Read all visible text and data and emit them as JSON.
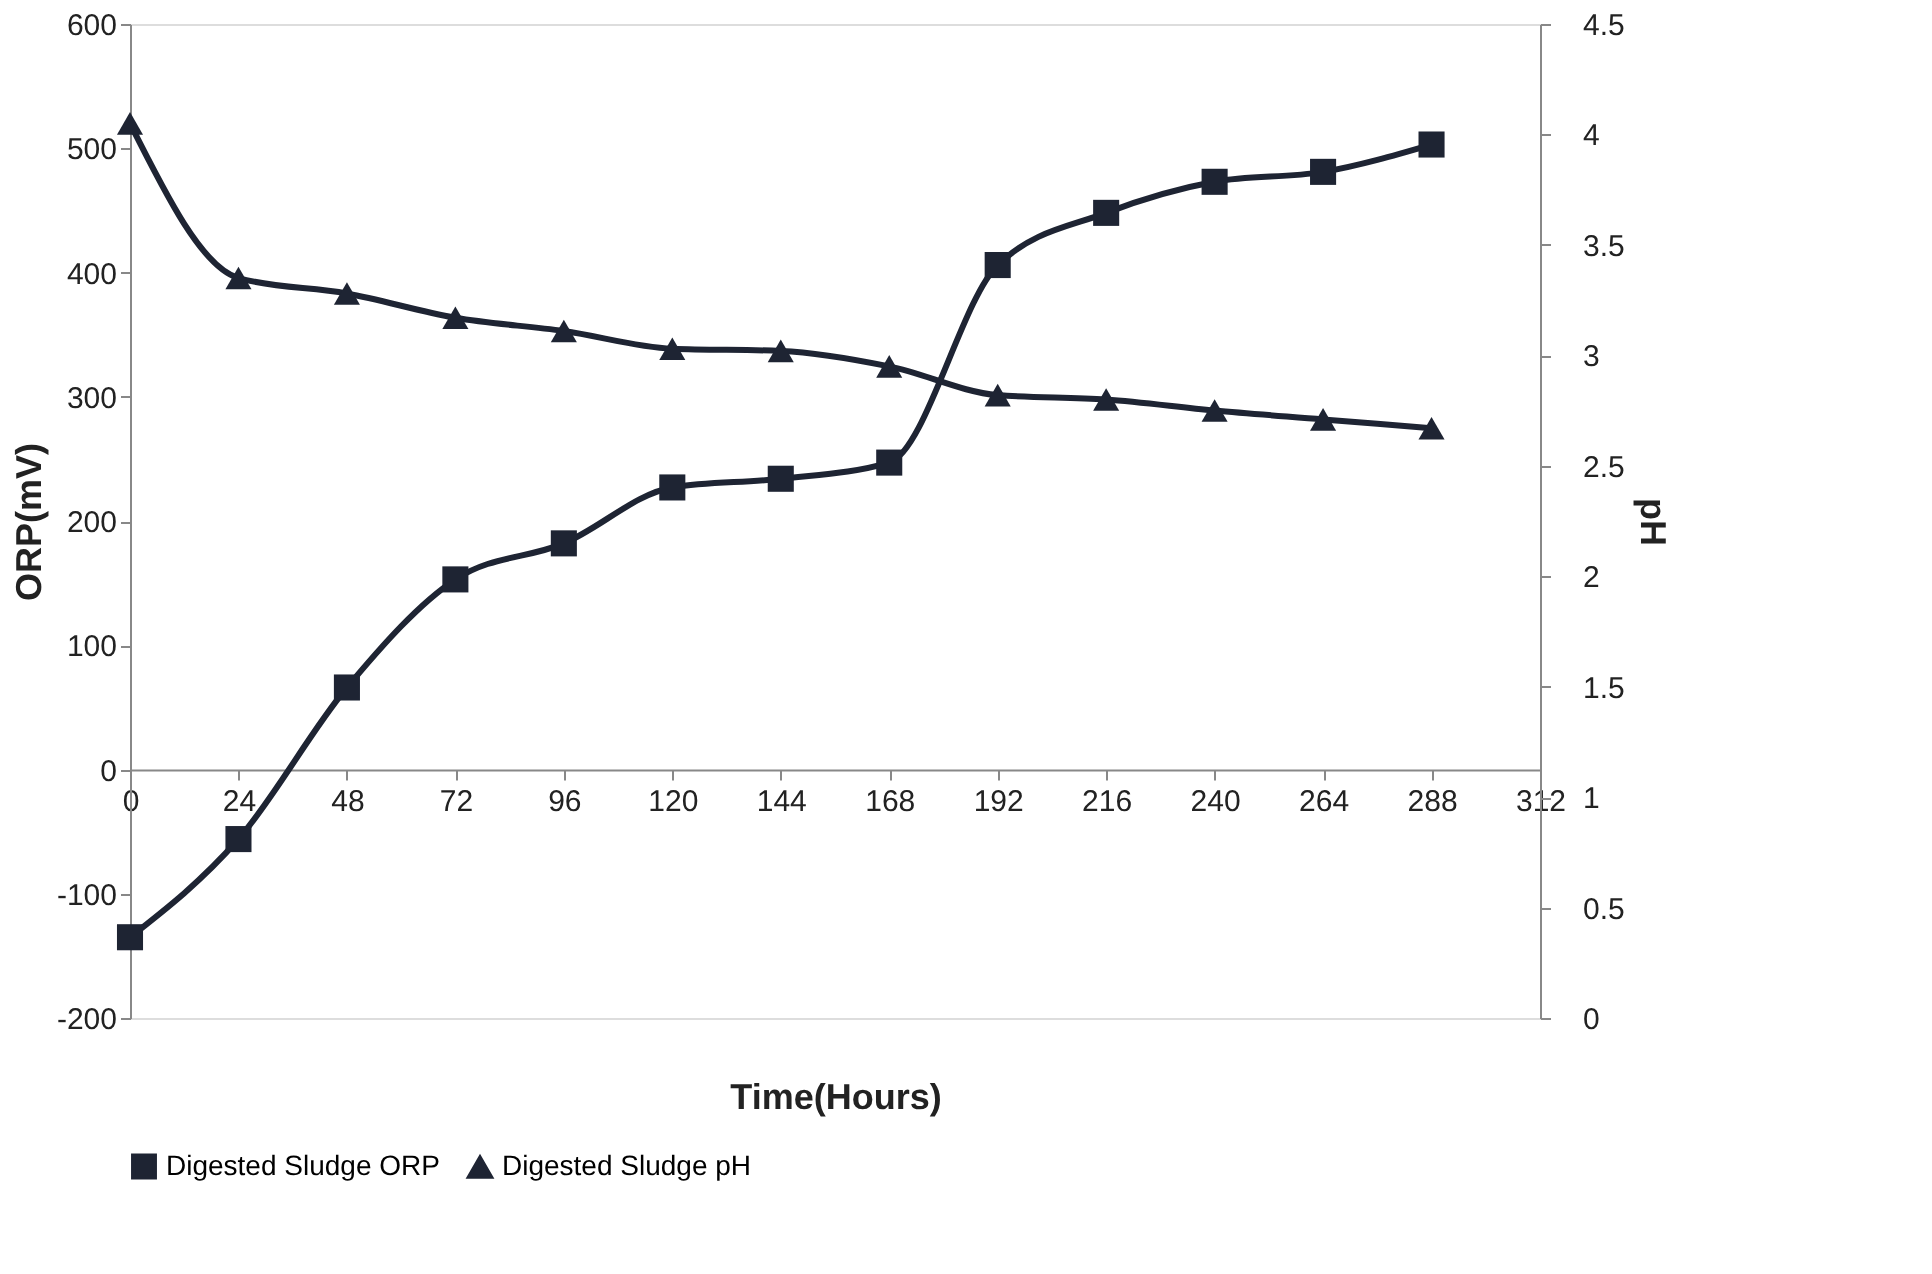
{
  "chart_data": {
    "type": "line",
    "xlabel": "Time(Hours)",
    "ylabel": "ORP(mV)",
    "y2label": "pH",
    "x": [
      0,
      24,
      48,
      72,
      96,
      120,
      144,
      168,
      192,
      216,
      240,
      264,
      288
    ],
    "series": [
      {
        "name": "Digested Sludge ORP",
        "color": "#1e2433",
        "marker": "square",
        "values": [
          -135,
          -56,
          66,
          153,
          182,
          227,
          234,
          247,
          406,
          448,
          473,
          481,
          503
        ]
      },
      {
        "name": "Digested Sludge pH",
        "color": "#1e2433",
        "marker": "triangle",
        "axis": "y2",
        "values": [
          4.05,
          3.35,
          3.28,
          3.17,
          3.11,
          3.03,
          3.02,
          2.95,
          2.82,
          2.8,
          2.75,
          2.71,
          2.67
        ]
      }
    ],
    "xlim": [
      0,
      312
    ],
    "xticks": [
      0,
      24,
      48,
      72,
      96,
      120,
      144,
      168,
      192,
      216,
      240,
      264,
      288,
      312
    ],
    "ylim": [
      -200,
      600
    ],
    "yticks": [
      -200,
      -100,
      0,
      100,
      200,
      300,
      400,
      500,
      600
    ],
    "y2lim": [
      0,
      4.5
    ],
    "y2ticks": [
      0,
      0.5,
      1,
      1.5,
      2,
      2.5,
      3,
      3.5,
      4,
      4.5
    ],
    "grid": false,
    "legend": "bottom",
    "line_style": "solid"
  }
}
